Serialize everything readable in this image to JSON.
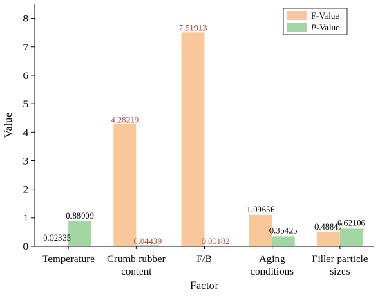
{
  "chart_data": {
    "type": "bar",
    "xlabel": "Factor",
    "ylabel": "Value",
    "ylim": [
      0,
      8.5
    ],
    "yticks": [
      0,
      1,
      2,
      3,
      4,
      5,
      6,
      7,
      8
    ],
    "legend_position": "top-right",
    "categories": [
      [
        "Temperature"
      ],
      [
        "Crumb rubber",
        "content"
      ],
      [
        "F/B"
      ],
      [
        "Aging",
        "conditions"
      ],
      [
        "Filler particle",
        "sizes"
      ]
    ],
    "series": [
      {
        "name": "F-Value",
        "color": "#f8c89a",
        "values": [
          0.02335,
          4.28219,
          7.51913,
          1.09656,
          0.48847
        ],
        "labels": [
          "0.02335",
          "4.28219",
          "7.51913",
          "1.09656",
          "0.48847"
        ]
      },
      {
        "name": "P-Value",
        "color": "#a2d6a2",
        "values": [
          0.88009,
          0.04439,
          0.00182,
          0.35425,
          0.62106
        ],
        "labels": [
          "0.88009",
          "0.04439",
          "0.00182",
          "0.35425",
          "0.62106"
        ]
      }
    ]
  }
}
